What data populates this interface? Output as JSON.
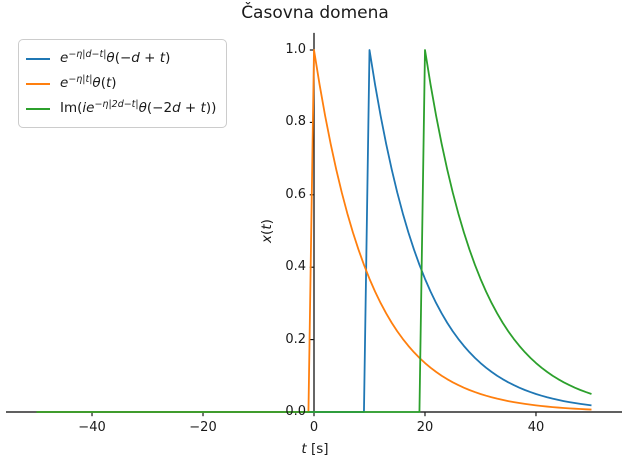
{
  "figure": {
    "title": "Časovna domena",
    "background": "#ffffff",
    "axis_color": "#000000",
    "text_color": "#1a1a1a"
  },
  "chart_data": {
    "type": "line",
    "title": "Časovna domena",
    "xlabel": "t [s]",
    "ylabel": "x(t)",
    "xlim": [
      -55.5,
      55.5
    ],
    "ylim": [
      -0.05,
      1.05
    ],
    "x_range": [
      -50,
      50
    ],
    "sample_step": 1,
    "grid": false,
    "legend_position": "upper left",
    "xticks": [
      -40,
      -20,
      0,
      20,
      40
    ],
    "xtick_labels": [
      "−40",
      "−20",
      "0",
      "20",
      "40"
    ],
    "yticks": [
      0.0,
      0.2,
      0.4,
      0.6,
      0.8,
      1.0
    ],
    "ytick_labels": [
      "0.0",
      "0.2",
      "0.4",
      "0.6",
      "0.8",
      "1.0"
    ],
    "params": {
      "eta": 0.1,
      "d": 10
    },
    "series": [
      {
        "name": "e^(−η|d−t|)θ(−d+t)",
        "color": "#1f77b4",
        "onset": 10,
        "eta": 0.1,
        "peak": 1.0,
        "key_points": [
          [
            -50,
            0
          ],
          [
            0,
            0
          ],
          [
            10,
            1.0
          ],
          [
            20,
            0.368
          ],
          [
            30,
            0.135
          ],
          [
            40,
            0.05
          ],
          [
            50,
            0.018
          ]
        ]
      },
      {
        "name": "e^(−η|t|)θ(t)",
        "color": "#ff7f0e",
        "onset": 0,
        "eta": 0.1,
        "peak": 1.0,
        "key_points": [
          [
            -50,
            0
          ],
          [
            0,
            1.0
          ],
          [
            10,
            0.368
          ],
          [
            20,
            0.135
          ],
          [
            30,
            0.05
          ],
          [
            40,
            0.018
          ],
          [
            50,
            0.007
          ]
        ]
      },
      {
        "name": "Im(ie^(−η|2d−t|)θ(−2d+t))",
        "color": "#2ca02c",
        "onset": 20,
        "eta": 0.1,
        "peak": 1.0,
        "key_points": [
          [
            -50,
            0
          ],
          [
            0,
            0
          ],
          [
            20,
            1.0
          ],
          [
            30,
            0.368
          ],
          [
            40,
            0.135
          ],
          [
            50,
            0.05
          ]
        ]
      }
    ]
  },
  "labels": {
    "xlabel_parts": [
      {
        "t": "t",
        "s": "i"
      },
      {
        "t": " [s]",
        "s": "r"
      }
    ],
    "ylabel_parts": [
      {
        "t": "x",
        "s": "i"
      },
      {
        "t": "(",
        "s": "r"
      },
      {
        "t": "t",
        "s": "i"
      },
      {
        "t": ")",
        "s": "r"
      }
    ]
  },
  "legend": {
    "items": [
      {
        "color": "#1f77b4",
        "parts": [
          {
            "t": "e",
            "s": "i"
          },
          {
            "t": "−η|d−t|",
            "s": "sup"
          },
          {
            "t": "θ",
            "s": "i"
          },
          {
            "t": "(−",
            "s": "r"
          },
          {
            "t": "d",
            "s": "i"
          },
          {
            "t": " + ",
            "s": "r"
          },
          {
            "t": "t",
            "s": "i"
          },
          {
            "t": ")",
            "s": "r"
          }
        ]
      },
      {
        "color": "#ff7f0e",
        "parts": [
          {
            "t": "e",
            "s": "i"
          },
          {
            "t": "−η|t|",
            "s": "sup"
          },
          {
            "t": "θ",
            "s": "i"
          },
          {
            "t": "(",
            "s": "r"
          },
          {
            "t": "t",
            "s": "i"
          },
          {
            "t": ")",
            "s": "r"
          }
        ]
      },
      {
        "color": "#2ca02c",
        "parts": [
          {
            "t": "Im(",
            "s": "r"
          },
          {
            "t": "ie",
            "s": "i"
          },
          {
            "t": "−η|2d−t|",
            "s": "sup"
          },
          {
            "t": "θ",
            "s": "i"
          },
          {
            "t": "(−2",
            "s": "r"
          },
          {
            "t": "d",
            "s": "i"
          },
          {
            "t": " + ",
            "s": "r"
          },
          {
            "t": "t",
            "s": "i"
          },
          {
            "t": "))",
            "s": "r"
          }
        ]
      }
    ]
  }
}
